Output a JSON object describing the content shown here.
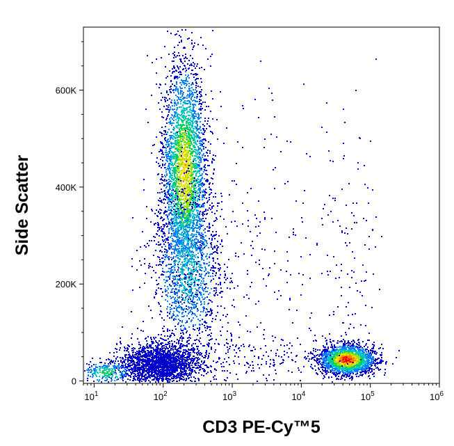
{
  "chart_data": {
    "type": "scatter",
    "subtype": "flow-cytometry-density-dot-plot",
    "xlabel": "CD3 PE-Cy™5",
    "ylabel": "Side Scatter",
    "x_scale": "log",
    "xlim": [
      7,
      1000000
    ],
    "ylim": [
      -5000,
      730000
    ],
    "x_ticks": [
      10,
      100,
      1000,
      10000,
      100000,
      1000000
    ],
    "x_tick_labels": [
      {
        "base": "10",
        "exp": "1"
      },
      {
        "base": "10",
        "exp": "2"
      },
      {
        "base": "10",
        "exp": "3"
      },
      {
        "base": "10",
        "exp": "4"
      },
      {
        "base": "10",
        "exp": "5"
      },
      {
        "base": "10",
        "exp": "6"
      }
    ],
    "y_ticks": [
      0,
      200000,
      400000,
      600000
    ],
    "y_tick_labels": [
      "0",
      "200K",
      "400K",
      "600K"
    ],
    "grid": false,
    "density_colormap": [
      "#0000cd",
      "#0080ff",
      "#00c8c8",
      "#00d060",
      "#a0e000",
      "#ffe000",
      "#ff8000",
      "#ff0000"
    ],
    "populations": [
      {
        "x_center": 200,
        "x_spread_decades": 0.16,
        "y_center": 430000,
        "y_spread": 115000,
        "count": 5200,
        "peak_color": "#ffe000"
      },
      {
        "x_center": 220,
        "x_spread_decades": 0.26,
        "y_center": 230000,
        "y_spread": 90000,
        "count": 1300,
        "peak_color": "#00c8c8"
      },
      {
        "x_center": 90,
        "x_spread_decades": 0.28,
        "y_center": 35000,
        "y_spread": 22000,
        "count": 2400,
        "peak_color": "#ff6000"
      },
      {
        "x_center": 15,
        "x_spread_decades": 0.2,
        "y_center": 18000,
        "y_spread": 12000,
        "count": 260,
        "peak_color": "#00d060"
      },
      {
        "x_center": 45000,
        "x_spread_decades": 0.2,
        "y_center": 45000,
        "y_spread": 15000,
        "count": 2200,
        "peak_color": "#ff0000"
      },
      {
        "x_center": 45000,
        "x_spread_decades": 0.22,
        "y_center": 260000,
        "y_spread": 170000,
        "count": 130,
        "peak_color": "#0000cd"
      },
      {
        "x_center": 2000,
        "x_spread_decades": 0.6,
        "y_center": 200000,
        "y_spread": 200000,
        "count": 260,
        "peak_color": "#0000cd"
      },
      {
        "x_center": 1500,
        "x_spread_decades": 0.7,
        "y_center": 50000,
        "y_spread": 25000,
        "count": 220,
        "peak_color": "#0000cd"
      }
    ]
  }
}
